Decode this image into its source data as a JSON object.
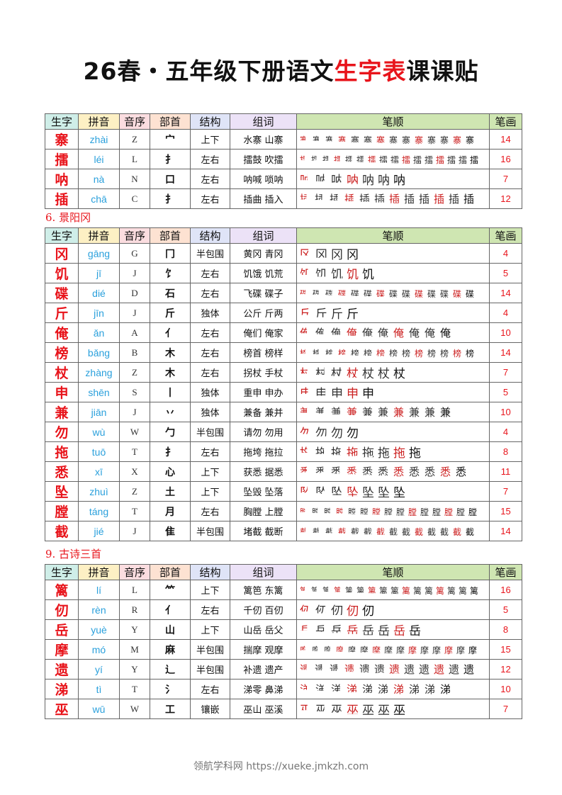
{
  "title": {
    "part1": "26春・五年级下册语文",
    "part2": "生字表",
    "part3": "课课贴"
  },
  "headers": [
    "生字",
    "拼音",
    "音序",
    "部首",
    "结构",
    "组词",
    "笔顺",
    "笔画"
  ],
  "header_colors": [
    "#cfeee8",
    "#fdf0c4",
    "#fbdde0",
    "#fde2d2",
    "#dfe4f7",
    "#ece2f7",
    "#cfe6b2",
    "#cfe6b2"
  ],
  "tables": [
    {
      "section": "",
      "rows": [
        {
          "char": "寨",
          "pinyin": "zhài",
          "index": "Z",
          "radical": "宀",
          "structure": "上下",
          "words": "水寨 山寨",
          "strokes": 14
        },
        {
          "char": "擂",
          "pinyin": "léi",
          "index": "L",
          "radical": "扌",
          "structure": "左右",
          "words": "擂鼓 吹擂",
          "strokes": 16
        },
        {
          "char": "呐",
          "pinyin": "nà",
          "index": "N",
          "radical": "口",
          "structure": "左右",
          "words": "呐喊 唢呐",
          "strokes": 7
        },
        {
          "char": "插",
          "pinyin": "chā",
          "index": "C",
          "radical": "扌",
          "structure": "左右",
          "words": "插曲 插入",
          "strokes": 12
        }
      ]
    },
    {
      "section": "6. 景阳冈",
      "rows": [
        {
          "char": "冈",
          "pinyin": "gāng",
          "index": "G",
          "radical": "冂",
          "structure": "半包围",
          "words": "黄冈 青冈",
          "strokes": 4
        },
        {
          "char": "饥",
          "pinyin": "jī",
          "index": "J",
          "radical": "饣",
          "structure": "左右",
          "words": "饥饿 饥荒",
          "strokes": 5
        },
        {
          "char": "碟",
          "pinyin": "dié",
          "index": "D",
          "radical": "石",
          "structure": "左右",
          "words": "飞碟 碟子",
          "strokes": 14
        },
        {
          "char": "斤",
          "pinyin": "jīn",
          "index": "J",
          "radical": "斤",
          "structure": "独体",
          "words": "公斤 斤两",
          "strokes": 4
        },
        {
          "char": "俺",
          "pinyin": "ǎn",
          "index": "A",
          "radical": "亻",
          "structure": "左右",
          "words": "俺们 俺家",
          "strokes": 10
        },
        {
          "char": "榜",
          "pinyin": "bǎng",
          "index": "B",
          "radical": "木",
          "structure": "左右",
          "words": "榜首 榜样",
          "strokes": 14
        },
        {
          "char": "杖",
          "pinyin": "zhàng",
          "index": "Z",
          "radical": "木",
          "structure": "左右",
          "words": "拐杖 手杖",
          "strokes": 7
        },
        {
          "char": "申",
          "pinyin": "shēn",
          "index": "S",
          "radical": "丨",
          "structure": "独体",
          "words": "重申 申办",
          "strokes": 5
        },
        {
          "char": "兼",
          "pinyin": "jiān",
          "index": "J",
          "radical": "丷",
          "structure": "独体",
          "words": "兼备 兼并",
          "strokes": 10
        },
        {
          "char": "勿",
          "pinyin": "wù",
          "index": "W",
          "radical": "勹",
          "structure": "半包围",
          "words": "请勿 勿用",
          "strokes": 4
        },
        {
          "char": "拖",
          "pinyin": "tuō",
          "index": "T",
          "radical": "扌",
          "structure": "左右",
          "words": "拖垮 拖拉",
          "strokes": 8
        },
        {
          "char": "悉",
          "pinyin": "xī",
          "index": "X",
          "radical": "心",
          "structure": "上下",
          "words": "获悉 据悉",
          "strokes": 11
        },
        {
          "char": "坠",
          "pinyin": "zhuì",
          "index": "Z",
          "radical": "土",
          "structure": "上下",
          "words": "坠毁 坠落",
          "strokes": 7
        },
        {
          "char": "膛",
          "pinyin": "táng",
          "index": "T",
          "radical": "月",
          "structure": "左右",
          "words": "胸膛 上膛",
          "strokes": 15
        },
        {
          "char": "截",
          "pinyin": "jié",
          "index": "J",
          "radical": "隹",
          "structure": "半包围",
          "words": "堵截 截断",
          "strokes": 14
        }
      ]
    },
    {
      "section": "9. 古诗三首",
      "rows": [
        {
          "char": "篱",
          "pinyin": "lí",
          "index": "L",
          "radical": "⺮",
          "structure": "上下",
          "words": "篱笆 东篱",
          "strokes": 16
        },
        {
          "char": "仞",
          "pinyin": "rèn",
          "index": "R",
          "radical": "亻",
          "structure": "左右",
          "words": "千仞 百仞",
          "strokes": 5
        },
        {
          "char": "岳",
          "pinyin": "yuè",
          "index": "Y",
          "radical": "山",
          "structure": "上下",
          "words": "山岳 岳父",
          "strokes": 8
        },
        {
          "char": "摩",
          "pinyin": "mó",
          "index": "M",
          "radical": "麻",
          "structure": "半包围",
          "words": "揣摩 观摩",
          "strokes": 15
        },
        {
          "char": "遗",
          "pinyin": "yí",
          "index": "Y",
          "radical": "辶",
          "structure": "半包围",
          "words": "补遗 遗产",
          "strokes": 12
        },
        {
          "char": "涕",
          "pinyin": "tì",
          "index": "T",
          "radical": "氵",
          "structure": "左右",
          "words": "涕零 鼻涕",
          "strokes": 10
        },
        {
          "char": "巫",
          "pinyin": "wū",
          "index": "W",
          "radical": "工",
          "structure": "镶嵌",
          "words": "巫山 巫溪",
          "strokes": 7
        }
      ]
    }
  ],
  "footer": "领航学科网 https://xueke.jmkzh.com"
}
